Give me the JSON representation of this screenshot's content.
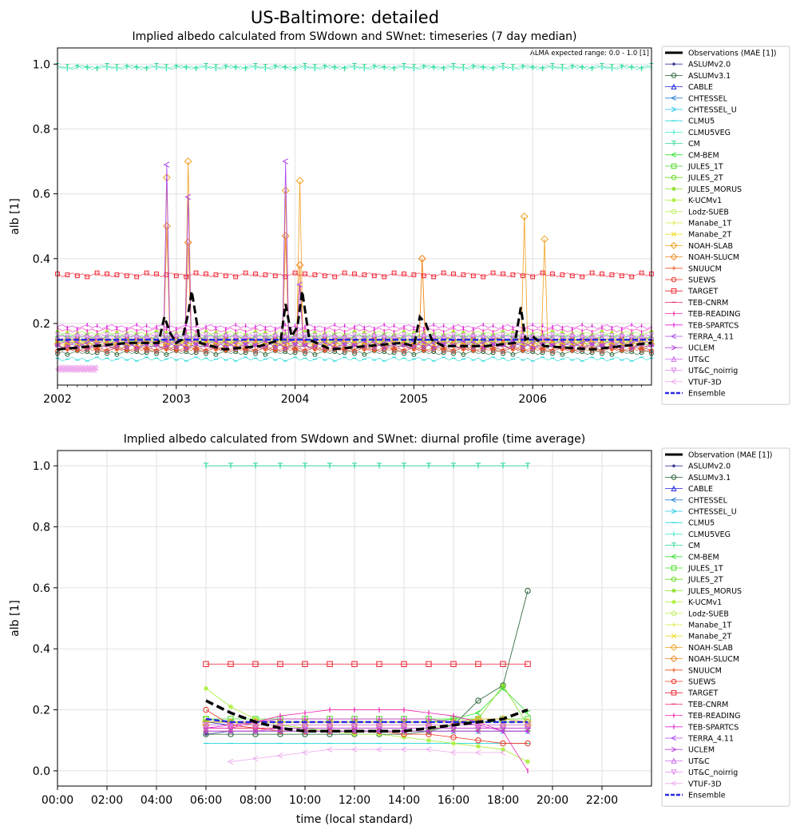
{
  "suptitle": "US-Baltimore: detailed",
  "series_colors": {
    "Observations": "#000000",
    "ASLUMv2.0": "#3b3b9a",
    "ASLUMv3.1": "#1e5c2e",
    "CABLE": "#2222dd",
    "CHTESSEL": "#2a7fd4",
    "CHTESSEL_U": "#22c8e8",
    "CLMU5": "#22d8d8",
    "CLMU5VEG": "#3ce8c8",
    "CM": "#28d890",
    "CM-BEM": "#30e030",
    "JULES_1T": "#44dd22",
    "JULES_2T": "#66dd22",
    "JULES_MORUS": "#88dd22",
    "K-UCMv1": "#a8ee30",
    "Lodz-SUEB": "#c0f060",
    "Manabe_1T": "#dde840",
    "Manabe_2T": "#eedd30",
    "NOAH-SLAB": "#f0a020",
    "NOAH-SLUCM": "#ee8822",
    "SNUUCM": "#ee5522",
    "SUEWS": "#ee3322",
    "TARGET": "#ee2030",
    "TEB-CNRM": "#ee2270",
    "TEB-READING": "#ee22b0",
    "TEB-SPARTCS": "#dd22dd",
    "TERRA_4.11": "#aa44ee",
    "UCLEM": "#bb44dd",
    "UT&C": "#cc66ee",
    "UT&C_noirrig": "#dd88ee",
    "VTUF-3D": "#eeaaee",
    "Ensemble": "#2a2ae0"
  },
  "chart_data": [
    {
      "type": "line",
      "title": "Implied albedo calculated from SWdown and SWnet: timeseries (7 day median)",
      "ylabel": "alb [1]",
      "xlabel": "",
      "x_ticks": [
        "2002",
        "2003",
        "2004",
        "2005",
        "2006"
      ],
      "x_range": [
        2002.0,
        2007.0
      ],
      "y_ticks": [
        "0.2",
        "0.4",
        "0.6",
        "0.8",
        "1.0"
      ],
      "ylim": [
        0.01,
        1.05
      ],
      "grid": true,
      "legend_position": "outside-right",
      "annotation": "ALMA expected range: 0.0 - 1.0 [1]",
      "legend": [
        "Observations (MAE [1])",
        "ASLUMv2.0",
        "ASLUMv3.1",
        "CABLE",
        "CHTESSEL",
        "CHTESSEL_U",
        "CLMU5",
        "CLMU5VEG",
        "CM",
        "CM-BEM",
        "JULES_1T",
        "JULES_2T",
        "JULES_MORUS",
        "K-UCMv1",
        "Lodz-SUEB",
        "Manabe_1T",
        "Manabe_2T",
        "NOAH-SLAB",
        "NOAH-SLUCM",
        "SNUUCM",
        "SUEWS",
        "TARGET",
        "TEB-CNRM",
        "TEB-READING",
        "TEB-SPARTCS",
        "TERRA_4.11",
        "UCLEM",
        "UT&C",
        "UT&C_noirrig",
        "VTUF-3D",
        "Ensemble"
      ],
      "series": [
        {
          "name": "Observations (MAE [1])",
          "baseline": 0.13,
          "x": [
            2002.0,
            2002.3,
            2002.6,
            2002.85,
            2002.9,
            2002.95,
            2003.0,
            2003.05,
            2003.1,
            2003.13,
            2003.2,
            2003.4,
            2003.7,
            2003.88,
            2003.92,
            2003.97,
            2004.02,
            2004.06,
            2004.12,
            2004.3,
            2004.6,
            2004.9,
            2005.0,
            2005.05,
            2005.1,
            2005.15,
            2005.25,
            2005.6,
            2005.85,
            2005.9,
            2005.94,
            2006.0,
            2006.1,
            2006.5,
            2007.0
          ],
          "y": [
            0.12,
            0.13,
            0.14,
            0.14,
            0.22,
            0.17,
            0.14,
            0.15,
            0.23,
            0.3,
            0.14,
            0.12,
            0.13,
            0.15,
            0.26,
            0.16,
            0.19,
            0.3,
            0.15,
            0.12,
            0.13,
            0.14,
            0.13,
            0.22,
            0.2,
            0.15,
            0.13,
            0.13,
            0.14,
            0.25,
            0.15,
            0.16,
            0.13,
            0.12,
            0.14
          ]
        },
        {
          "name": "ASLUMv2.0",
          "baseline": 0.13
        },
        {
          "name": "ASLUMv3.1",
          "baseline": 0.11
        },
        {
          "name": "CABLE",
          "baseline": 0.13
        },
        {
          "name": "CHTESSEL",
          "baseline": 0.14
        },
        {
          "name": "CHTESSEL_U",
          "baseline": 0.12
        },
        {
          "name": "CLMU5",
          "baseline": 0.09
        },
        {
          "name": "CLMU5VEG",
          "baseline": 0.99
        },
        {
          "name": "CM",
          "baseline": 0.99
        },
        {
          "name": "CM-BEM",
          "baseline": 0.16
        },
        {
          "name": "JULES_1T",
          "baseline": 0.15
        },
        {
          "name": "JULES_2T",
          "baseline": 0.15
        },
        {
          "name": "JULES_MORUS",
          "baseline": 0.15
        },
        {
          "name": "K-UCMv1",
          "baseline": 0.17
        },
        {
          "name": "Lodz-SUEB",
          "baseline": 0.14
        },
        {
          "name": "Manabe_1T",
          "baseline": 0.15
        },
        {
          "name": "Manabe_2T",
          "baseline": 0.14
        },
        {
          "name": "NOAH-SLAB",
          "baseline": 0.14,
          "peaks": [
            0.65,
            0.7,
            0.61,
            0.64,
            0.4,
            0.53,
            0.46
          ]
        },
        {
          "name": "NOAH-SLUCM",
          "baseline": 0.13,
          "peaks": [
            0.5,
            0.45,
            0.47,
            0.38,
            0.4
          ]
        },
        {
          "name": "SNUUCM",
          "baseline": 0.12
        },
        {
          "name": "SUEWS",
          "baseline": 0.12
        },
        {
          "name": "TARGET",
          "baseline": 0.35
        },
        {
          "name": "TEB-CNRM",
          "baseline": 0.15
        },
        {
          "name": "TEB-READING",
          "baseline": 0.18
        },
        {
          "name": "TEB-SPARTCS",
          "baseline": 0.19
        },
        {
          "name": "TERRA_4.11",
          "baseline": 0.14,
          "peaks": [
            0.69,
            0.59,
            0.7,
            0.32
          ]
        },
        {
          "name": "UCLEM",
          "baseline": 0.13
        },
        {
          "name": "UT&C",
          "baseline": 0.16
        },
        {
          "name": "UT&C_noirrig",
          "baseline": 0.16
        },
        {
          "name": "VTUF-3D",
          "baseline": 0.06,
          "x_end": 2002.33
        },
        {
          "name": "Ensemble",
          "baseline": 0.15
        }
      ]
    },
    {
      "type": "line",
      "title": "Implied albedo calculated from SWdown and SWnet: diurnal profile (time average)",
      "ylabel": "alb [1]",
      "xlabel": "time (local standard)",
      "x_ticks": [
        "00:00",
        "02:00",
        "04:00",
        "06:00",
        "08:00",
        "10:00",
        "12:00",
        "14:00",
        "16:00",
        "18:00",
        "20:00",
        "22:00"
      ],
      "x_range": [
        0,
        24
      ],
      "y_ticks": [
        "0.0",
        "0.2",
        "0.4",
        "0.6",
        "0.8",
        "1.0"
      ],
      "ylim": [
        -0.05,
        1.05
      ],
      "grid": true,
      "legend_position": "outside-right",
      "legend": [
        "Observation (MAE [1])",
        "ASLUMv2.0",
        "ASLUMv3.1",
        "CABLE",
        "CHTESSEL",
        "CHTESSEL_U",
        "CLMU5",
        "CLMU5VEG",
        "CM",
        "CM-BEM",
        "JULES_1T",
        "JULES_2T",
        "JULES_MORUS",
        "K-UCMv1",
        "Lodz-SUEB",
        "Manabe_1T",
        "Manabe_2T",
        "NOAH-SLAB",
        "NOAH-SLUCM",
        "SNUUCM",
        "SUEWS",
        "TARGET",
        "TEB-CNRM",
        "TEB-READING",
        "TEB-SPARTCS",
        "TERRA_4.11",
        "UCLEM",
        "UT&C",
        "UT&C_noirrig",
        "VTUF-3D",
        "Ensemble"
      ],
      "x": [
        6,
        7,
        8,
        9,
        10,
        11,
        12,
        13,
        14,
        15,
        16,
        17,
        18,
        19
      ],
      "series": [
        {
          "name": "Observation (MAE [1])",
          "values": [
            0.23,
            0.19,
            0.16,
            0.14,
            0.13,
            0.13,
            0.13,
            0.13,
            0.13,
            0.14,
            0.15,
            0.16,
            0.17,
            0.2
          ]
        },
        {
          "name": "ASLUMv2.0",
          "values": [
            0.12,
            0.13,
            0.13,
            0.13,
            0.13,
            0.13,
            0.13,
            0.13,
            0.13,
            0.13,
            0.13,
            0.13,
            0.13,
            0.13
          ]
        },
        {
          "name": "ASLUMv3.1",
          "values": [
            0.12,
            0.12,
            0.12,
            0.12,
            0.12,
            0.12,
            0.12,
            0.12,
            0.12,
            0.13,
            0.15,
            0.23,
            0.28,
            0.59
          ]
        },
        {
          "name": "CABLE",
          "values": [
            0.16,
            0.15,
            0.15,
            0.15,
            0.15,
            0.15,
            0.15,
            0.15,
            0.15,
            0.15,
            0.15,
            0.15,
            0.15,
            0.15
          ]
        },
        {
          "name": "CHTESSEL",
          "values": [
            0.15,
            0.15,
            0.15,
            0.15,
            0.15,
            0.15,
            0.15,
            0.15,
            0.15,
            0.15,
            0.15,
            0.15,
            0.15,
            0.15
          ]
        },
        {
          "name": "CHTESSEL_U",
          "values": [
            0.13,
            0.13,
            0.13,
            0.13,
            0.13,
            0.13,
            0.13,
            0.13,
            0.13,
            0.13,
            0.13,
            0.13,
            0.13,
            0.13
          ]
        },
        {
          "name": "CLMU5",
          "values": [
            0.09,
            0.09,
            0.09,
            0.09,
            0.09,
            0.09,
            0.09,
            0.09,
            0.09,
            0.09,
            0.09,
            0.09,
            0.09,
            0.09
          ]
        },
        {
          "name": "CLMU5VEG",
          "values": [
            1.0,
            1.0,
            1.0,
            1.0,
            1.0,
            1.0,
            1.0,
            1.0,
            1.0,
            1.0,
            1.0,
            1.0,
            1.0,
            1.0
          ]
        },
        {
          "name": "CM",
          "values": [
            1.0,
            1.0,
            1.0,
            1.0,
            1.0,
            1.0,
            1.0,
            1.0,
            1.0,
            1.0,
            1.0,
            1.0,
            1.0,
            1.0
          ]
        },
        {
          "name": "CM-BEM",
          "values": [
            0.16,
            0.16,
            0.16,
            0.16,
            0.16,
            0.16,
            0.16,
            0.16,
            0.16,
            0.16,
            0.17,
            0.19,
            0.27,
            0.19
          ]
        },
        {
          "name": "JULES_1T",
          "values": [
            0.17,
            0.17,
            0.17,
            0.17,
            0.17,
            0.17,
            0.17,
            0.17,
            0.17,
            0.17,
            0.17,
            0.17,
            0.17,
            0.17
          ]
        },
        {
          "name": "JULES_2T",
          "values": [
            0.17,
            0.16,
            0.16,
            0.16,
            0.16,
            0.16,
            0.16,
            0.16,
            0.16,
            0.16,
            0.16,
            0.16,
            0.16,
            0.16
          ]
        },
        {
          "name": "JULES_MORUS",
          "values": [
            0.16,
            0.16,
            0.15,
            0.15,
            0.14,
            0.14,
            0.14,
            0.14,
            0.14,
            0.14,
            0.15,
            0.17,
            0.28,
            0.15
          ]
        },
        {
          "name": "K-UCMv1",
          "values": [
            0.27,
            0.21,
            0.17,
            0.15,
            0.14,
            0.13,
            0.12,
            0.12,
            0.11,
            0.1,
            0.09,
            0.08,
            0.07,
            0.03
          ]
        },
        {
          "name": "Lodz-SUEB",
          "values": [
            0.15,
            0.15,
            0.15,
            0.15,
            0.15,
            0.15,
            0.15,
            0.15,
            0.15,
            0.15,
            0.15,
            0.15,
            0.15,
            0.15
          ]
        },
        {
          "name": "Manabe_1T",
          "values": [
            0.15,
            0.15,
            0.15,
            0.15,
            0.15,
            0.15,
            0.15,
            0.15,
            0.15,
            0.15,
            0.15,
            0.15,
            0.15,
            0.15
          ]
        },
        {
          "name": "Manabe_2T",
          "values": [
            0.14,
            0.14,
            0.14,
            0.14,
            0.14,
            0.14,
            0.14,
            0.14,
            0.14,
            0.14,
            0.14,
            0.14,
            0.14,
            0.14
          ]
        },
        {
          "name": "NOAH-SLAB",
          "values": [
            0.16,
            0.16,
            0.16,
            0.16,
            0.16,
            0.16,
            0.16,
            0.16,
            0.16,
            0.16,
            0.16,
            0.17,
            0.17,
            0.16
          ]
        },
        {
          "name": "NOAH-SLUCM",
          "values": [
            0.15,
            0.15,
            0.15,
            0.15,
            0.15,
            0.15,
            0.15,
            0.15,
            0.15,
            0.15,
            0.15,
            0.15,
            0.15,
            0.15
          ]
        },
        {
          "name": "SNUUCM",
          "values": [
            0.13,
            0.13,
            0.13,
            0.13,
            0.13,
            0.13,
            0.13,
            0.13,
            0.13,
            0.13,
            0.13,
            0.13,
            0.13,
            0.13
          ]
        },
        {
          "name": "SUEWS",
          "values": [
            0.2,
            0.15,
            0.14,
            0.13,
            0.13,
            0.13,
            0.13,
            0.13,
            0.12,
            0.12,
            0.11,
            0.1,
            0.09,
            0.09
          ]
        },
        {
          "name": "TARGET",
          "values": [
            0.35,
            0.35,
            0.35,
            0.35,
            0.35,
            0.35,
            0.35,
            0.35,
            0.35,
            0.35,
            0.35,
            0.35,
            0.35,
            0.35
          ]
        },
        {
          "name": "TEB-CNRM",
          "values": [
            0.14,
            0.14,
            0.14,
            0.14,
            0.14,
            0.14,
            0.14,
            0.14,
            0.14,
            0.14,
            0.14,
            0.14,
            0.14,
            0.14
          ]
        },
        {
          "name": "TEB-READING",
          "values": [
            0.14,
            0.14,
            0.16,
            0.18,
            0.19,
            0.2,
            0.2,
            0.2,
            0.2,
            0.19,
            0.18,
            0.16,
            0.13,
            0.0
          ]
        },
        {
          "name": "TEB-SPARTCS",
          "values": [
            0.14,
            0.15,
            0.16,
            0.17,
            0.17,
            0.17,
            0.17,
            0.17,
            0.17,
            0.17,
            0.16,
            0.15,
            0.13,
            0.13
          ]
        },
        {
          "name": "TERRA_4.11",
          "values": [
            0.13,
            0.13,
            0.13,
            0.13,
            0.13,
            0.13,
            0.13,
            0.13,
            0.13,
            0.13,
            0.13,
            0.13,
            0.13,
            0.13
          ]
        },
        {
          "name": "UCLEM",
          "values": [
            0.13,
            0.13,
            0.13,
            0.14,
            0.14,
            0.14,
            0.14,
            0.14,
            0.14,
            0.14,
            0.14,
            0.14,
            0.14,
            0.14
          ]
        },
        {
          "name": "UT&C",
          "values": [
            0.15,
            0.15,
            0.15,
            0.15,
            0.15,
            0.15,
            0.15,
            0.15,
            0.15,
            0.15,
            0.15,
            0.15,
            0.15,
            0.15
          ]
        },
        {
          "name": "UT&C_noirrig",
          "values": [
            0.15,
            0.15,
            0.15,
            0.15,
            0.15,
            0.15,
            0.15,
            0.15,
            0.15,
            0.15,
            0.15,
            0.15,
            0.15,
            0.15
          ]
        },
        {
          "name": "VTUF-3D",
          "values": [
            null,
            0.03,
            0.04,
            0.05,
            0.06,
            0.07,
            0.07,
            0.07,
            0.07,
            0.07,
            0.06,
            0.06,
            0.06,
            null
          ]
        },
        {
          "name": "Ensemble",
          "values": [
            0.17,
            0.16,
            0.16,
            0.16,
            0.16,
            0.16,
            0.16,
            0.16,
            0.16,
            0.16,
            0.16,
            0.16,
            0.16,
            0.16
          ]
        }
      ]
    }
  ]
}
